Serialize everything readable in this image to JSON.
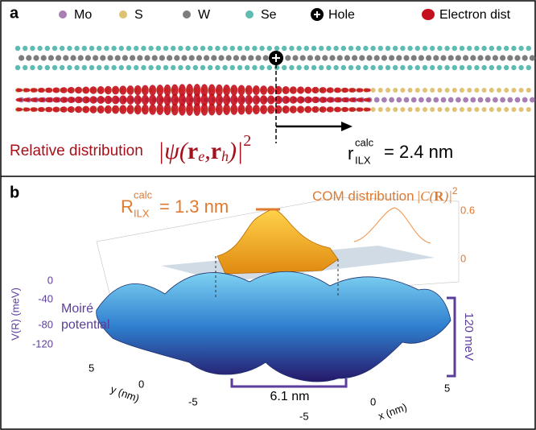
{
  "panel_a": {
    "label": "a",
    "legend": [
      {
        "label": "Mo",
        "color": "#a77fb4"
      },
      {
        "label": "S",
        "color": "#e0c274"
      },
      {
        "label": "W",
        "color": "#7d7d7d"
      },
      {
        "label": "Se",
        "color": "#5fbcb3"
      },
      {
        "label": "Hole",
        "color": "#000000"
      },
      {
        "label": "Electron dist",
        "color": "#c4101c"
      }
    ],
    "relative_label": "Relative distribution",
    "formula": {
      "open": "|ψ(",
      "r1": "r",
      "sub1": "e",
      "comma": ",",
      "r2": "r",
      "sub2": "h",
      "close": ")|",
      "power": "2"
    },
    "radius": {
      "symbol": "r",
      "superscript": "calc",
      "subscript": "ILX",
      "value": "= 2.4 nm"
    }
  },
  "panel_b": {
    "label": "b",
    "radius": {
      "symbol": "R",
      "superscript": "calc",
      "subscript": "ILX",
      "value": "= 1.3 nm"
    },
    "com_label": "COM distribution",
    "com_formula": {
      "open": "|C(",
      "bold": "R",
      "close": ")|",
      "power": "2"
    },
    "com_ticks": [
      "0.6",
      "0"
    ],
    "z_axis_label": "V(R) (meV)",
    "z_ticks": [
      "0",
      "-40",
      "-80",
      "-120"
    ],
    "moire_label": [
      "Moiré",
      "potential"
    ],
    "depth_label": "120 meV",
    "period_label": "6.1 nm",
    "y_ticks": [
      "5",
      "0",
      "-5"
    ],
    "y_axis_label": "y (nm)",
    "x_ticks": [
      "-5",
      "0",
      "5"
    ],
    "x_axis_label": "x (nm)"
  }
}
